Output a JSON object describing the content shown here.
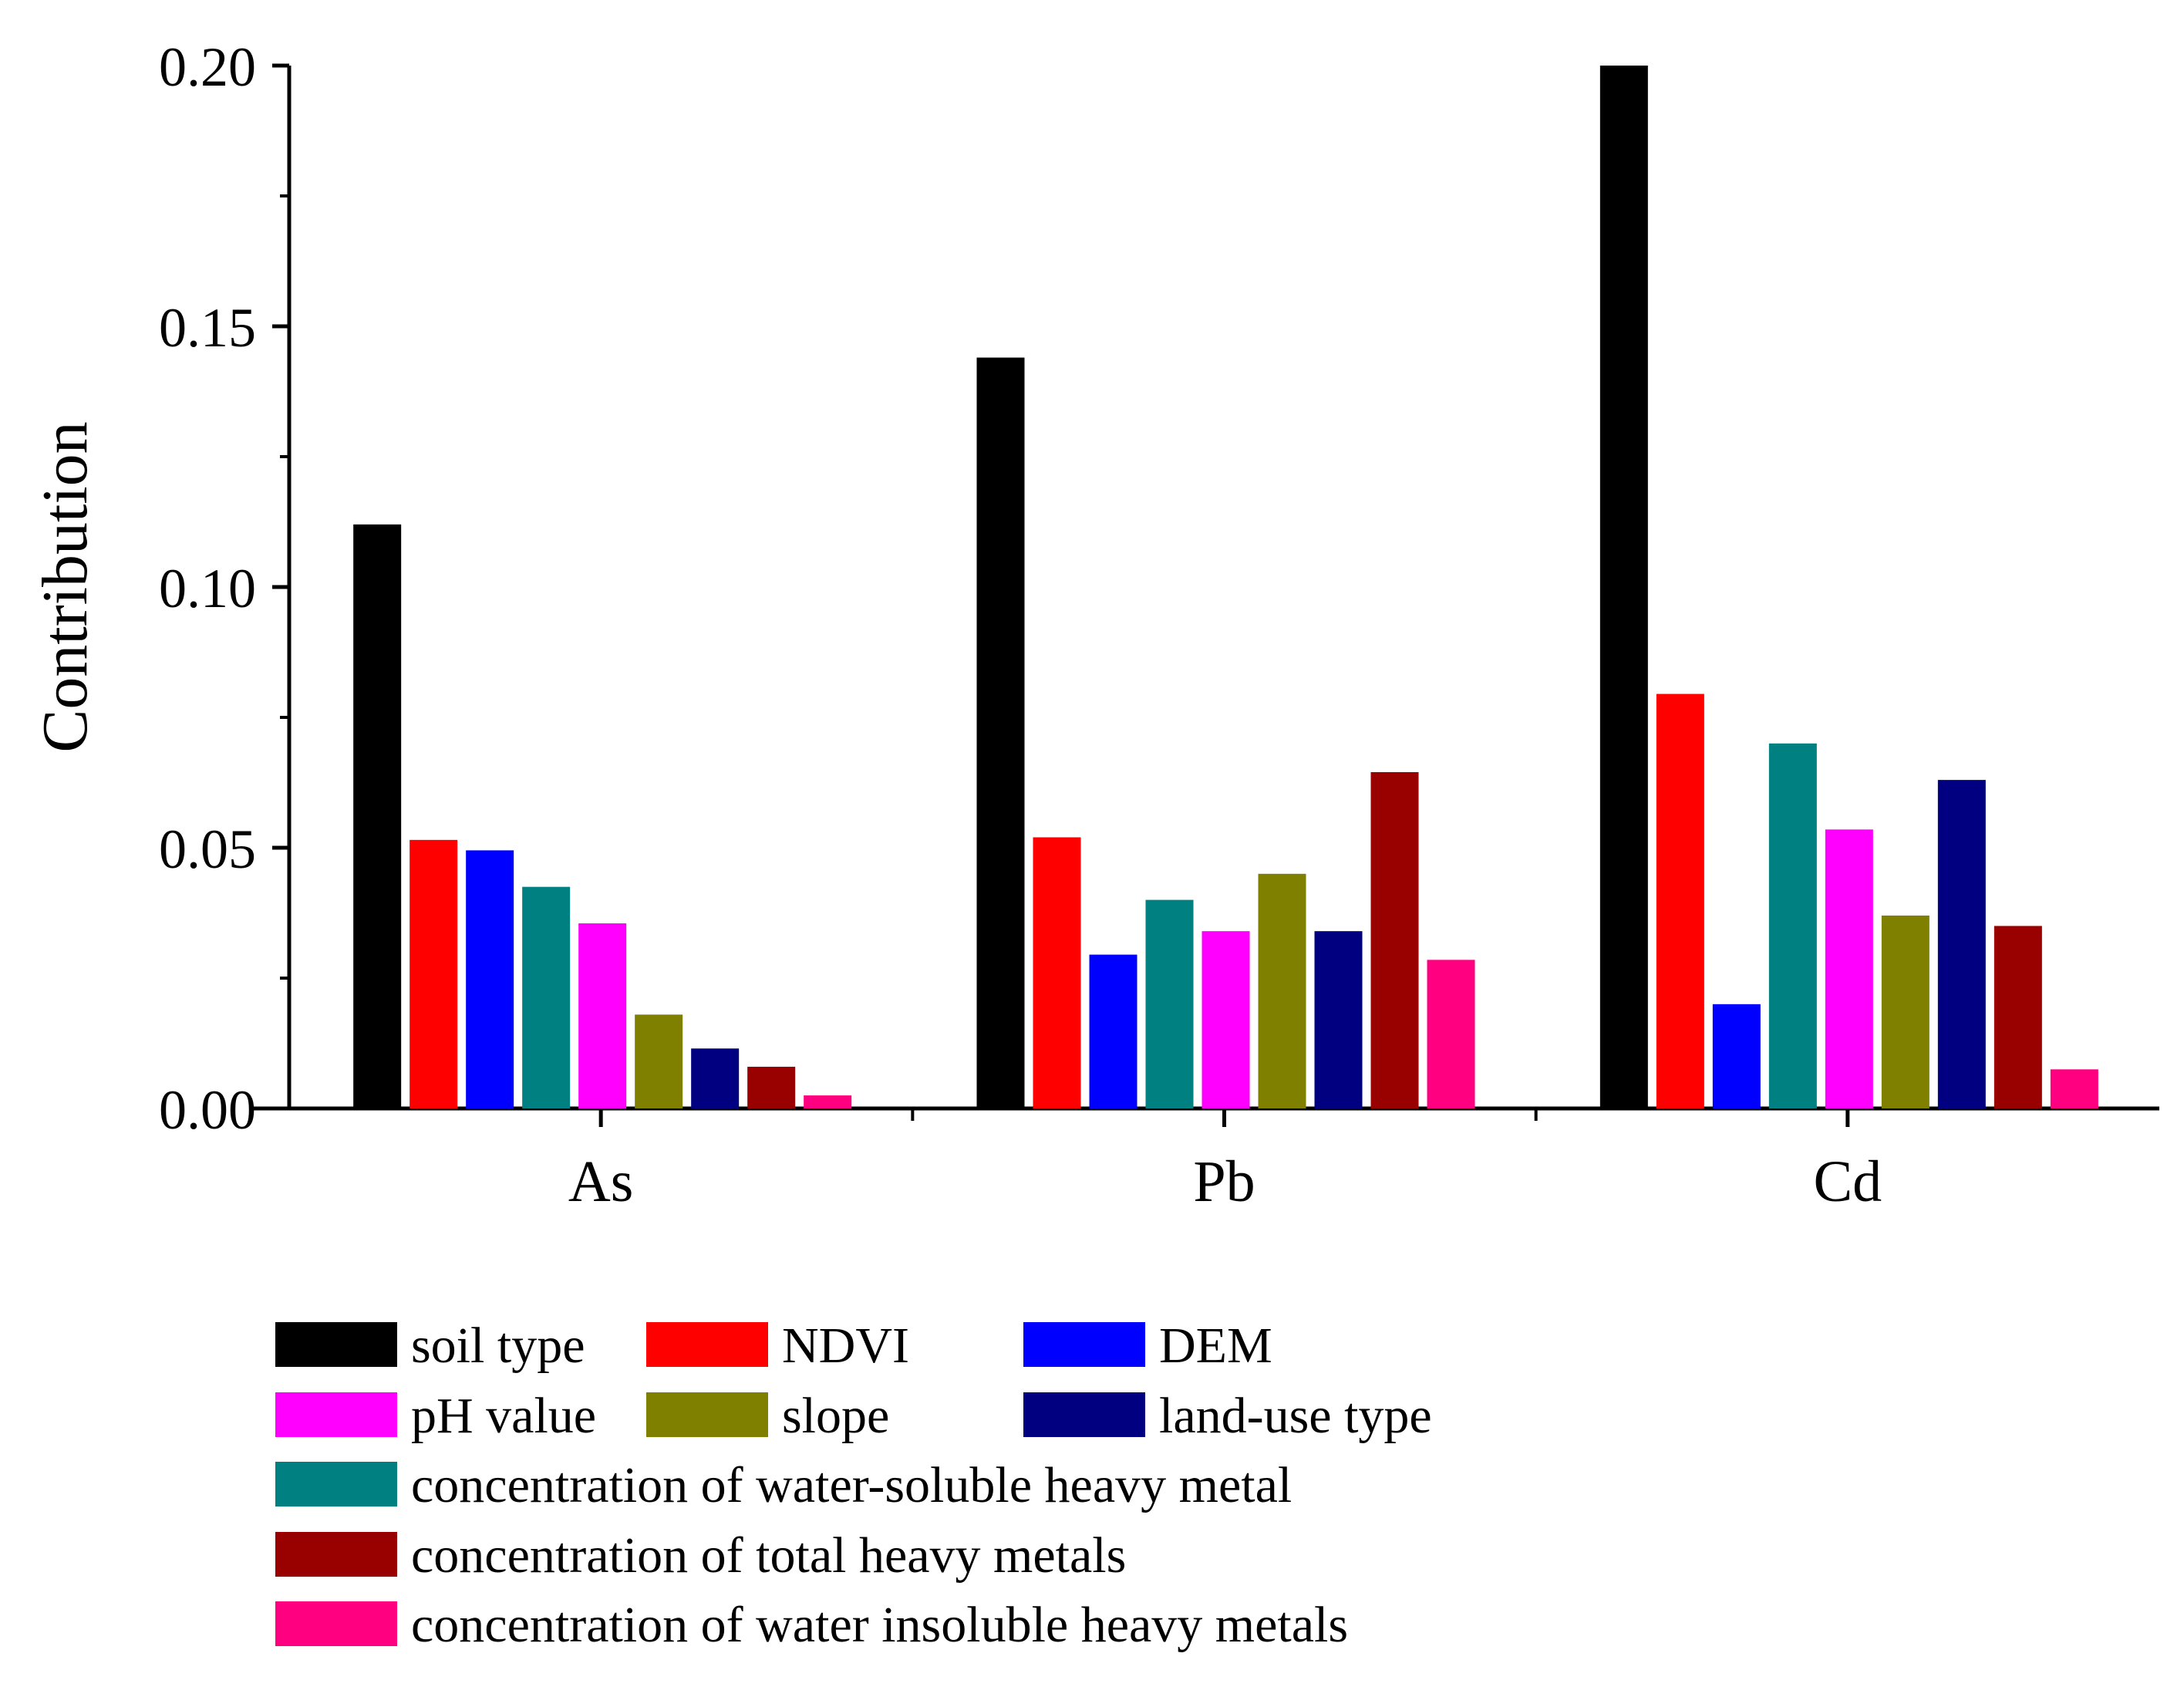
{
  "chart_data": {
    "type": "bar",
    "title": "",
    "xlabel": "",
    "ylabel": "Contribution",
    "ylim": [
      0,
      0.2
    ],
    "yticks": [
      "0.00",
      "0.05",
      "0.10",
      "0.15",
      "0.20"
    ],
    "categories": [
      "As",
      "Pb",
      "Cd"
    ],
    "grid": false,
    "legend_position": "bottom",
    "series": [
      {
        "name": "soil type",
        "color": "#000000",
        "values": [
          0.112,
          0.144,
          0.2
        ]
      },
      {
        "name": "NDVI",
        "color": "#ff0000",
        "values": [
          0.0515,
          0.052,
          0.0795
        ]
      },
      {
        "name": "DEM",
        "color": "#0000ff",
        "values": [
          0.0495,
          0.0295,
          0.02
        ]
      },
      {
        "name": "concentration of water-soluble heavy metal",
        "color": "#008080",
        "values": [
          0.0425,
          0.04,
          0.07
        ]
      },
      {
        "name": "pH value",
        "color": "#ff00ff",
        "values": [
          0.0355,
          0.034,
          0.0535
        ]
      },
      {
        "name": "slope",
        "color": "#808000",
        "values": [
          0.018,
          0.045,
          0.037
        ]
      },
      {
        "name": "land-use type",
        "color": "#000080",
        "values": [
          0.0115,
          0.034,
          0.063
        ]
      },
      {
        "name": "concentration of total heavy metals",
        "color": "#990000",
        "values": [
          0.008,
          0.0645,
          0.035
        ]
      },
      {
        "name": "concentration of water insoluble heavy metals",
        "color": "#ff0080",
        "values": [
          0.0025,
          0.0285,
          0.0075
        ]
      }
    ],
    "legend_order": [
      0,
      1,
      2,
      4,
      5,
      6,
      3,
      7,
      8
    ]
  }
}
